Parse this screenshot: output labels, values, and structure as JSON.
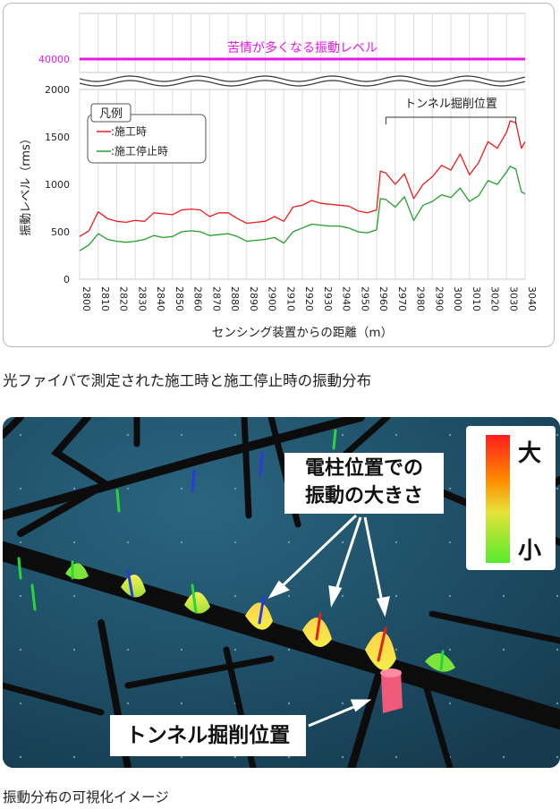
{
  "chart_data": {
    "type": "line",
    "title": "",
    "xlabel": "センシング装置からの距離（m）",
    "ylabel": "振動レベル（rms）",
    "xlim": [
      2800,
      3040
    ],
    "ylim": [
      0,
      2000
    ],
    "x_ticks": [
      "2800",
      "2810",
      "2820",
      "2830",
      "2840",
      "2850",
      "2860",
      "2870",
      "2880",
      "2890",
      "2900",
      "2910",
      "2920",
      "2930",
      "2940",
      "2950",
      "2960",
      "2970",
      "2980",
      "2990",
      "3000",
      "3010",
      "3020",
      "3030",
      "3040"
    ],
    "y_ticks": [
      "0",
      "500",
      "1000",
      "1500",
      "2000"
    ],
    "upper_tick": "40000",
    "threshold": {
      "value": 40000,
      "label": "苦情が多くなる振動レベル",
      "color": "#e619e6"
    },
    "legend": {
      "title": "凡例",
      "placement": "top-left"
    },
    "annotation": {
      "label": "トンネル掘削位置",
      "x_start": 2965,
      "x_end": 3035
    },
    "grid": "vertical",
    "x": [
      2800,
      2805,
      2810,
      2815,
      2820,
      2825,
      2830,
      2835,
      2840,
      2845,
      2850,
      2855,
      2860,
      2865,
      2870,
      2875,
      2880,
      2885,
      2890,
      2895,
      2900,
      2905,
      2910,
      2915,
      2920,
      2925,
      2930,
      2935,
      2940,
      2945,
      2950,
      2955,
      2960,
      2962,
      2965,
      2970,
      2975,
      2980,
      2985,
      2990,
      2995,
      3000,
      3005,
      3010,
      3015,
      3020,
      3025,
      3030,
      3032,
      3035,
      3038,
      3040
    ],
    "series": [
      {
        "name": ":施工時",
        "color": "#ee1c1c",
        "values": [
          450,
          510,
          710,
          640,
          610,
          600,
          620,
          610,
          700,
          690,
          680,
          730,
          740,
          730,
          660,
          700,
          700,
          640,
          590,
          600,
          610,
          660,
          610,
          760,
          780,
          830,
          800,
          790,
          780,
          770,
          720,
          700,
          730,
          1140,
          1120,
          1000,
          1110,
          850,
          1000,
          1080,
          1200,
          1150,
          1320,
          1100,
          1230,
          1450,
          1380,
          1550,
          1670,
          1650,
          1380,
          1450
        ]
      },
      {
        "name": ":施工停止時",
        "color": "#22a02a",
        "values": [
          300,
          360,
          480,
          420,
          400,
          390,
          400,
          420,
          460,
          440,
          450,
          500,
          510,
          500,
          460,
          470,
          480,
          450,
          400,
          410,
          420,
          440,
          380,
          500,
          540,
          580,
          570,
          560,
          560,
          540,
          500,
          490,
          520,
          850,
          840,
          760,
          870,
          620,
          780,
          820,
          890,
          860,
          960,
          820,
          880,
          1040,
          1000,
          1130,
          1190,
          1160,
          920,
          900
        ]
      }
    ]
  },
  "captions": {
    "top": "光ファイバで測定された施工時と施工停止時の振動分布",
    "bottom": "振動分布の可視化イメージ"
  },
  "visualization": {
    "pole_callout": {
      "line1": "電柱位置での",
      "line2": "振動の大きさ"
    },
    "tunnel_callout": "トンネル掘削位置",
    "legend_high": "大",
    "legend_low": "小"
  }
}
